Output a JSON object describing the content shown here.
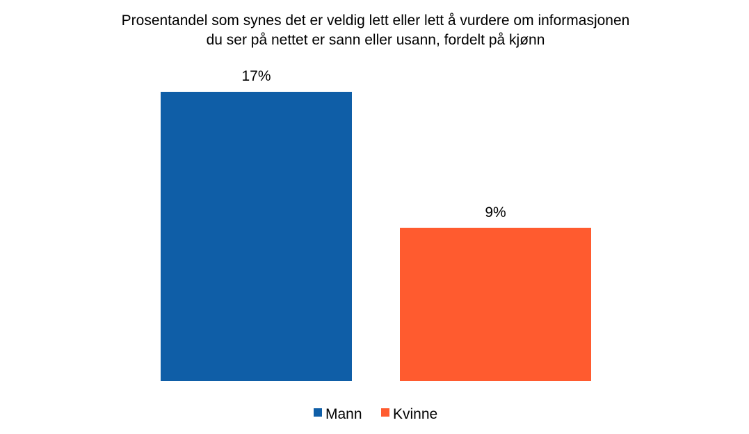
{
  "chart_data": {
    "type": "bar",
    "title": [
      "Prosentandel som synes det er veldig lett eller lett å vurdere om informasjonen",
      "du ser på nettet er sann eller usann, fordelt på kjønn"
    ],
    "xlabel": "",
    "ylabel": "",
    "ylim": [
      0,
      17
    ],
    "grid": false,
    "legend_position": "bottom",
    "value_suffix": "%",
    "series": [
      {
        "name": "Mann",
        "value": 17,
        "label": "17%",
        "color": "#0f5ea7"
      },
      {
        "name": "Kvinne",
        "value": 9,
        "label": "9%",
        "color": "#ff5b2f"
      }
    ]
  }
}
